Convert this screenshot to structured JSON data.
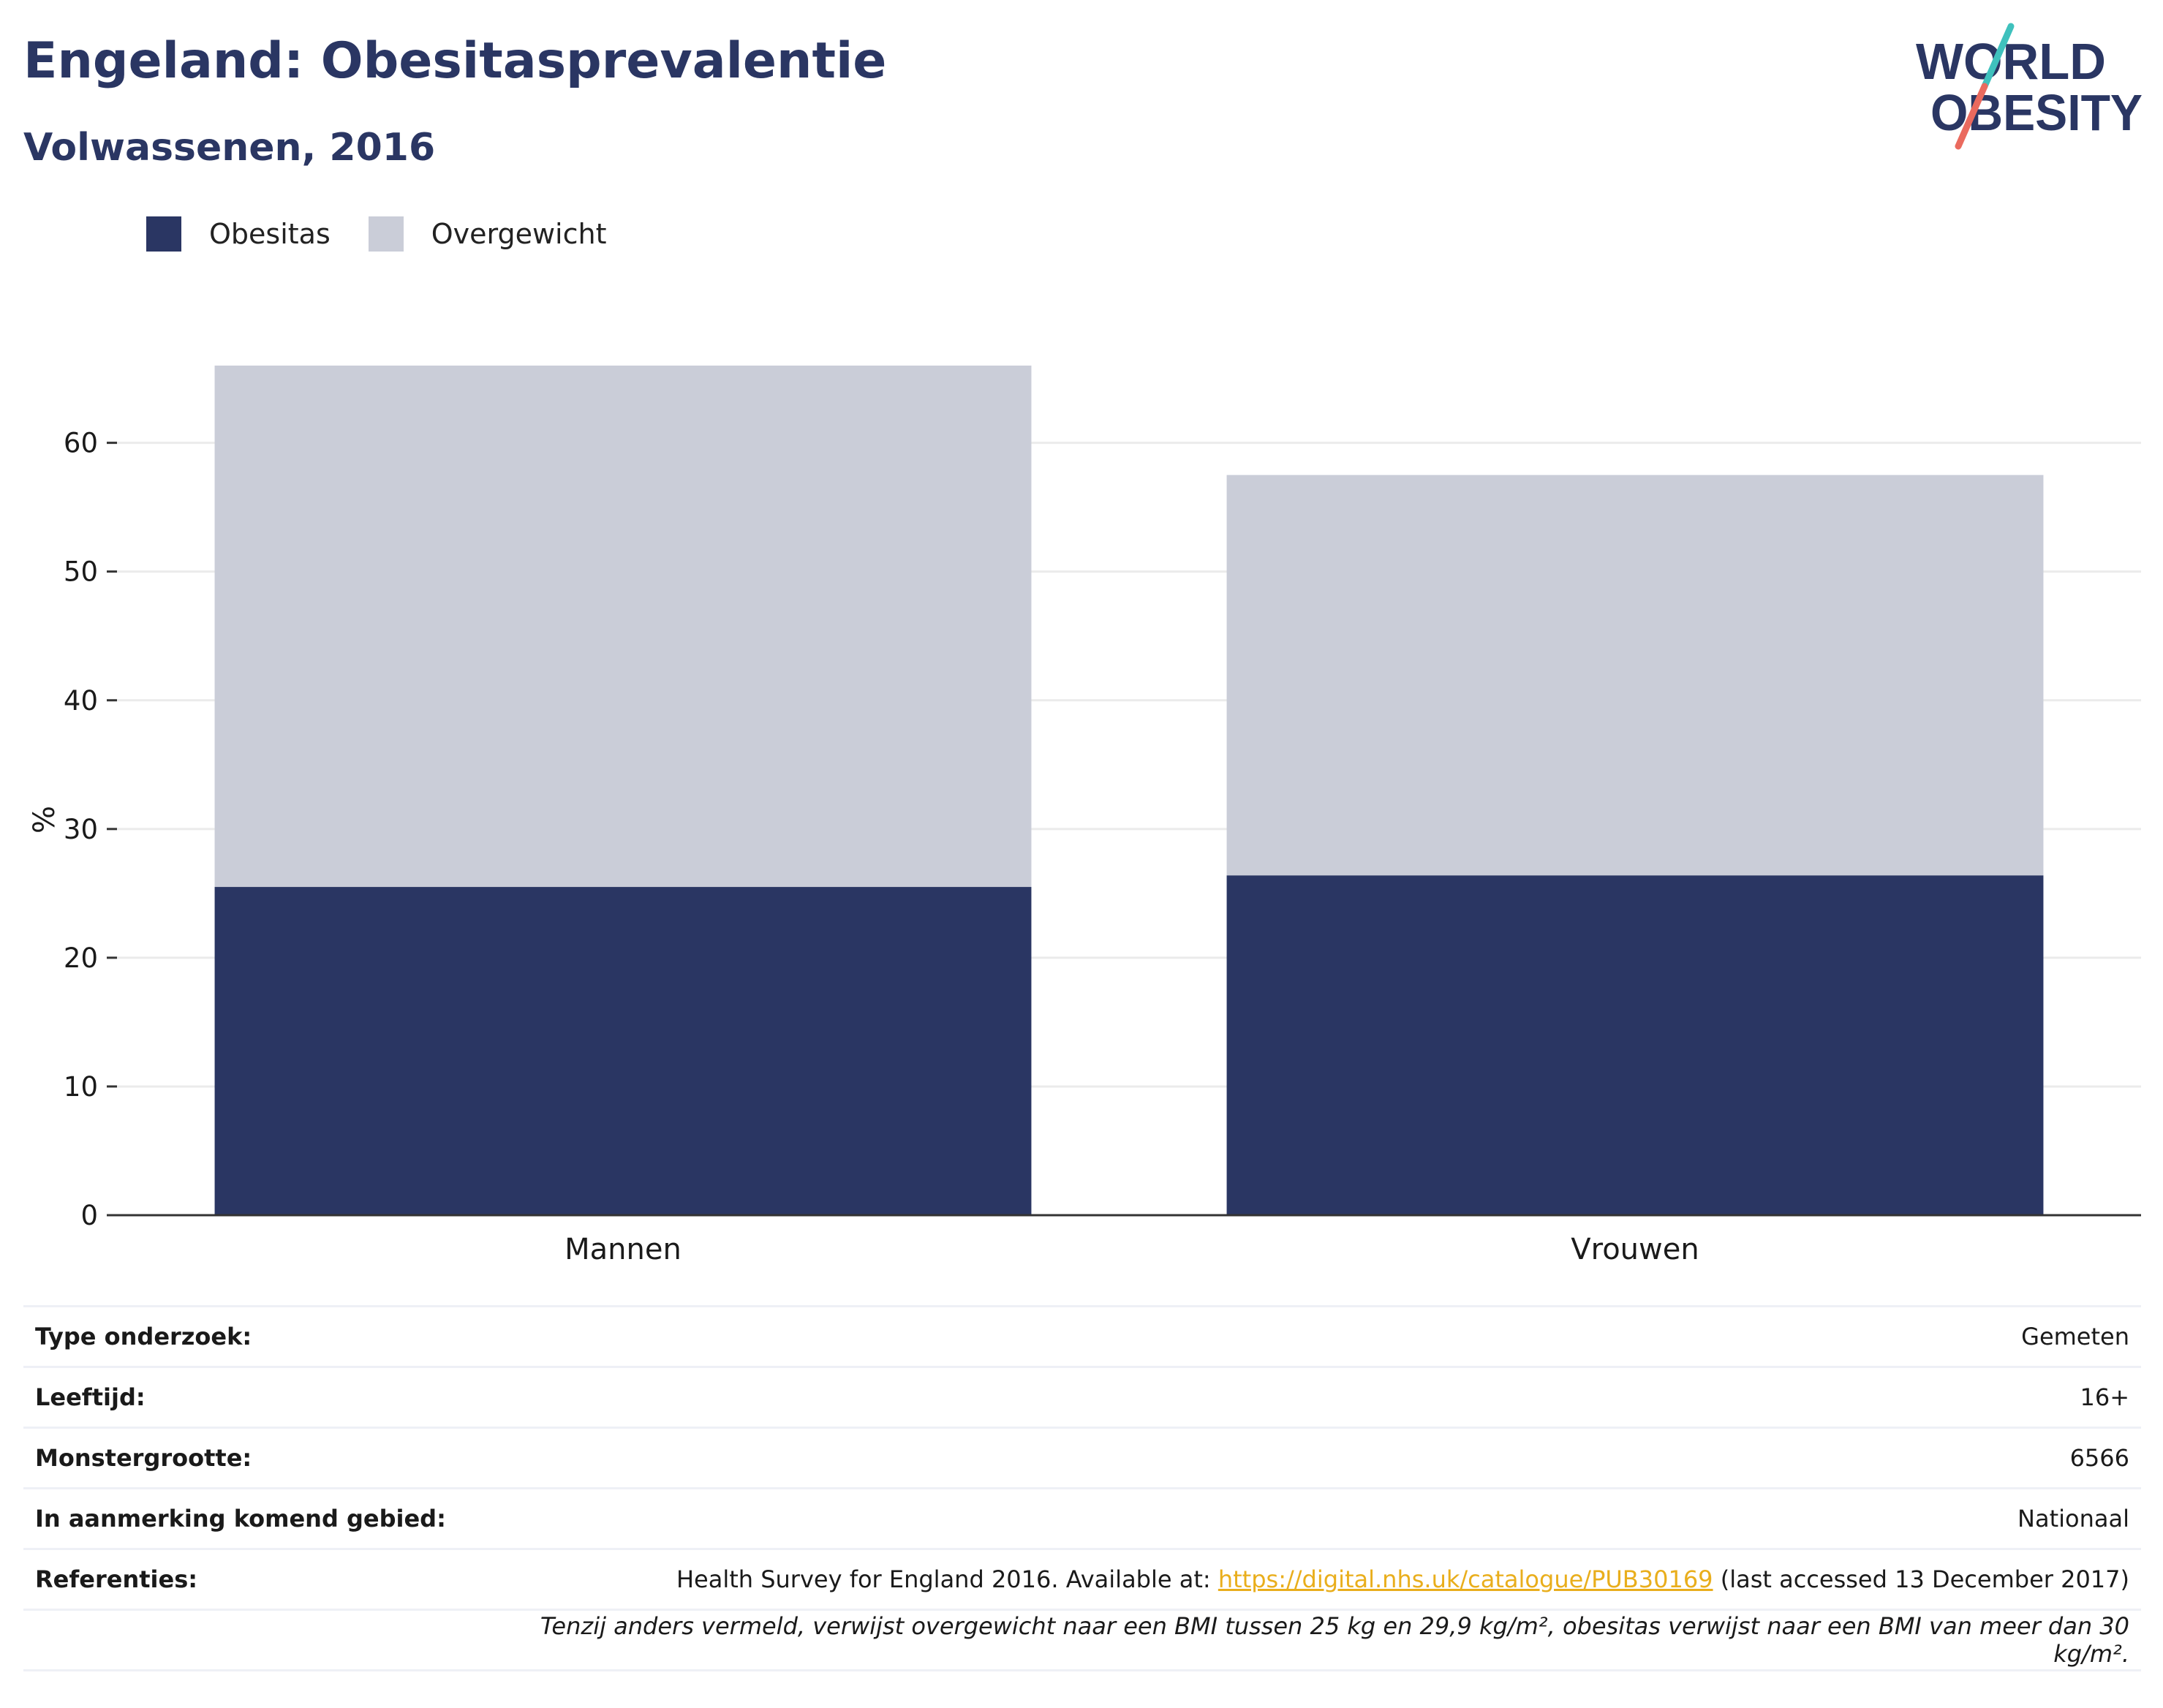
{
  "header": {
    "title": "Engeland: Obesitasprevalentie",
    "subtitle": "Volwassenen, 2016",
    "logo_line1": "WORLD",
    "logo_line2": "OBESITY"
  },
  "colors": {
    "obesity": "#2a3663",
    "overweight": "#cacdd8",
    "title": "#2a3663",
    "link": "#e9ae1c",
    "logo_teal": "#3fc1bd",
    "logo_coral": "#ea6a5e"
  },
  "chart_data": {
    "type": "bar",
    "stacked": true,
    "categories": [
      "Mannen",
      "Vrouwen"
    ],
    "series": [
      {
        "name": "Obesitas",
        "values": [
          25.5,
          26.4
        ]
      },
      {
        "name": "Overgewicht",
        "values": [
          40.5,
          31.1
        ]
      }
    ],
    "ylabel": "%",
    "xlabel": "",
    "ylim": [
      0,
      66
    ],
    "yticks": [
      0,
      10,
      20,
      30,
      40,
      50,
      60
    ],
    "grid": true,
    "legend": "top-left"
  },
  "info": {
    "rows": [
      {
        "label": "Type onderzoek:",
        "value": "Gemeten"
      },
      {
        "label": "Leeftijd:",
        "value": "16+"
      },
      {
        "label": "Monstergrootte:",
        "value": "6566"
      },
      {
        "label": "In aanmerking komend gebied:",
        "value": "Nationaal"
      }
    ],
    "references": {
      "label": "Referenties:",
      "prefix": "Health Survey for England 2016. Available at: ",
      "link": "https://digital.nhs.uk/catalogue/PUB30169",
      "suffix": " (last accessed 13 December 2017)"
    },
    "note": "Tenzij anders vermeld, verwijst overgewicht naar een BMI tussen 25 kg en 29,9 kg/m², obesitas verwijst naar een BMI van meer dan 30 kg/m²."
  }
}
